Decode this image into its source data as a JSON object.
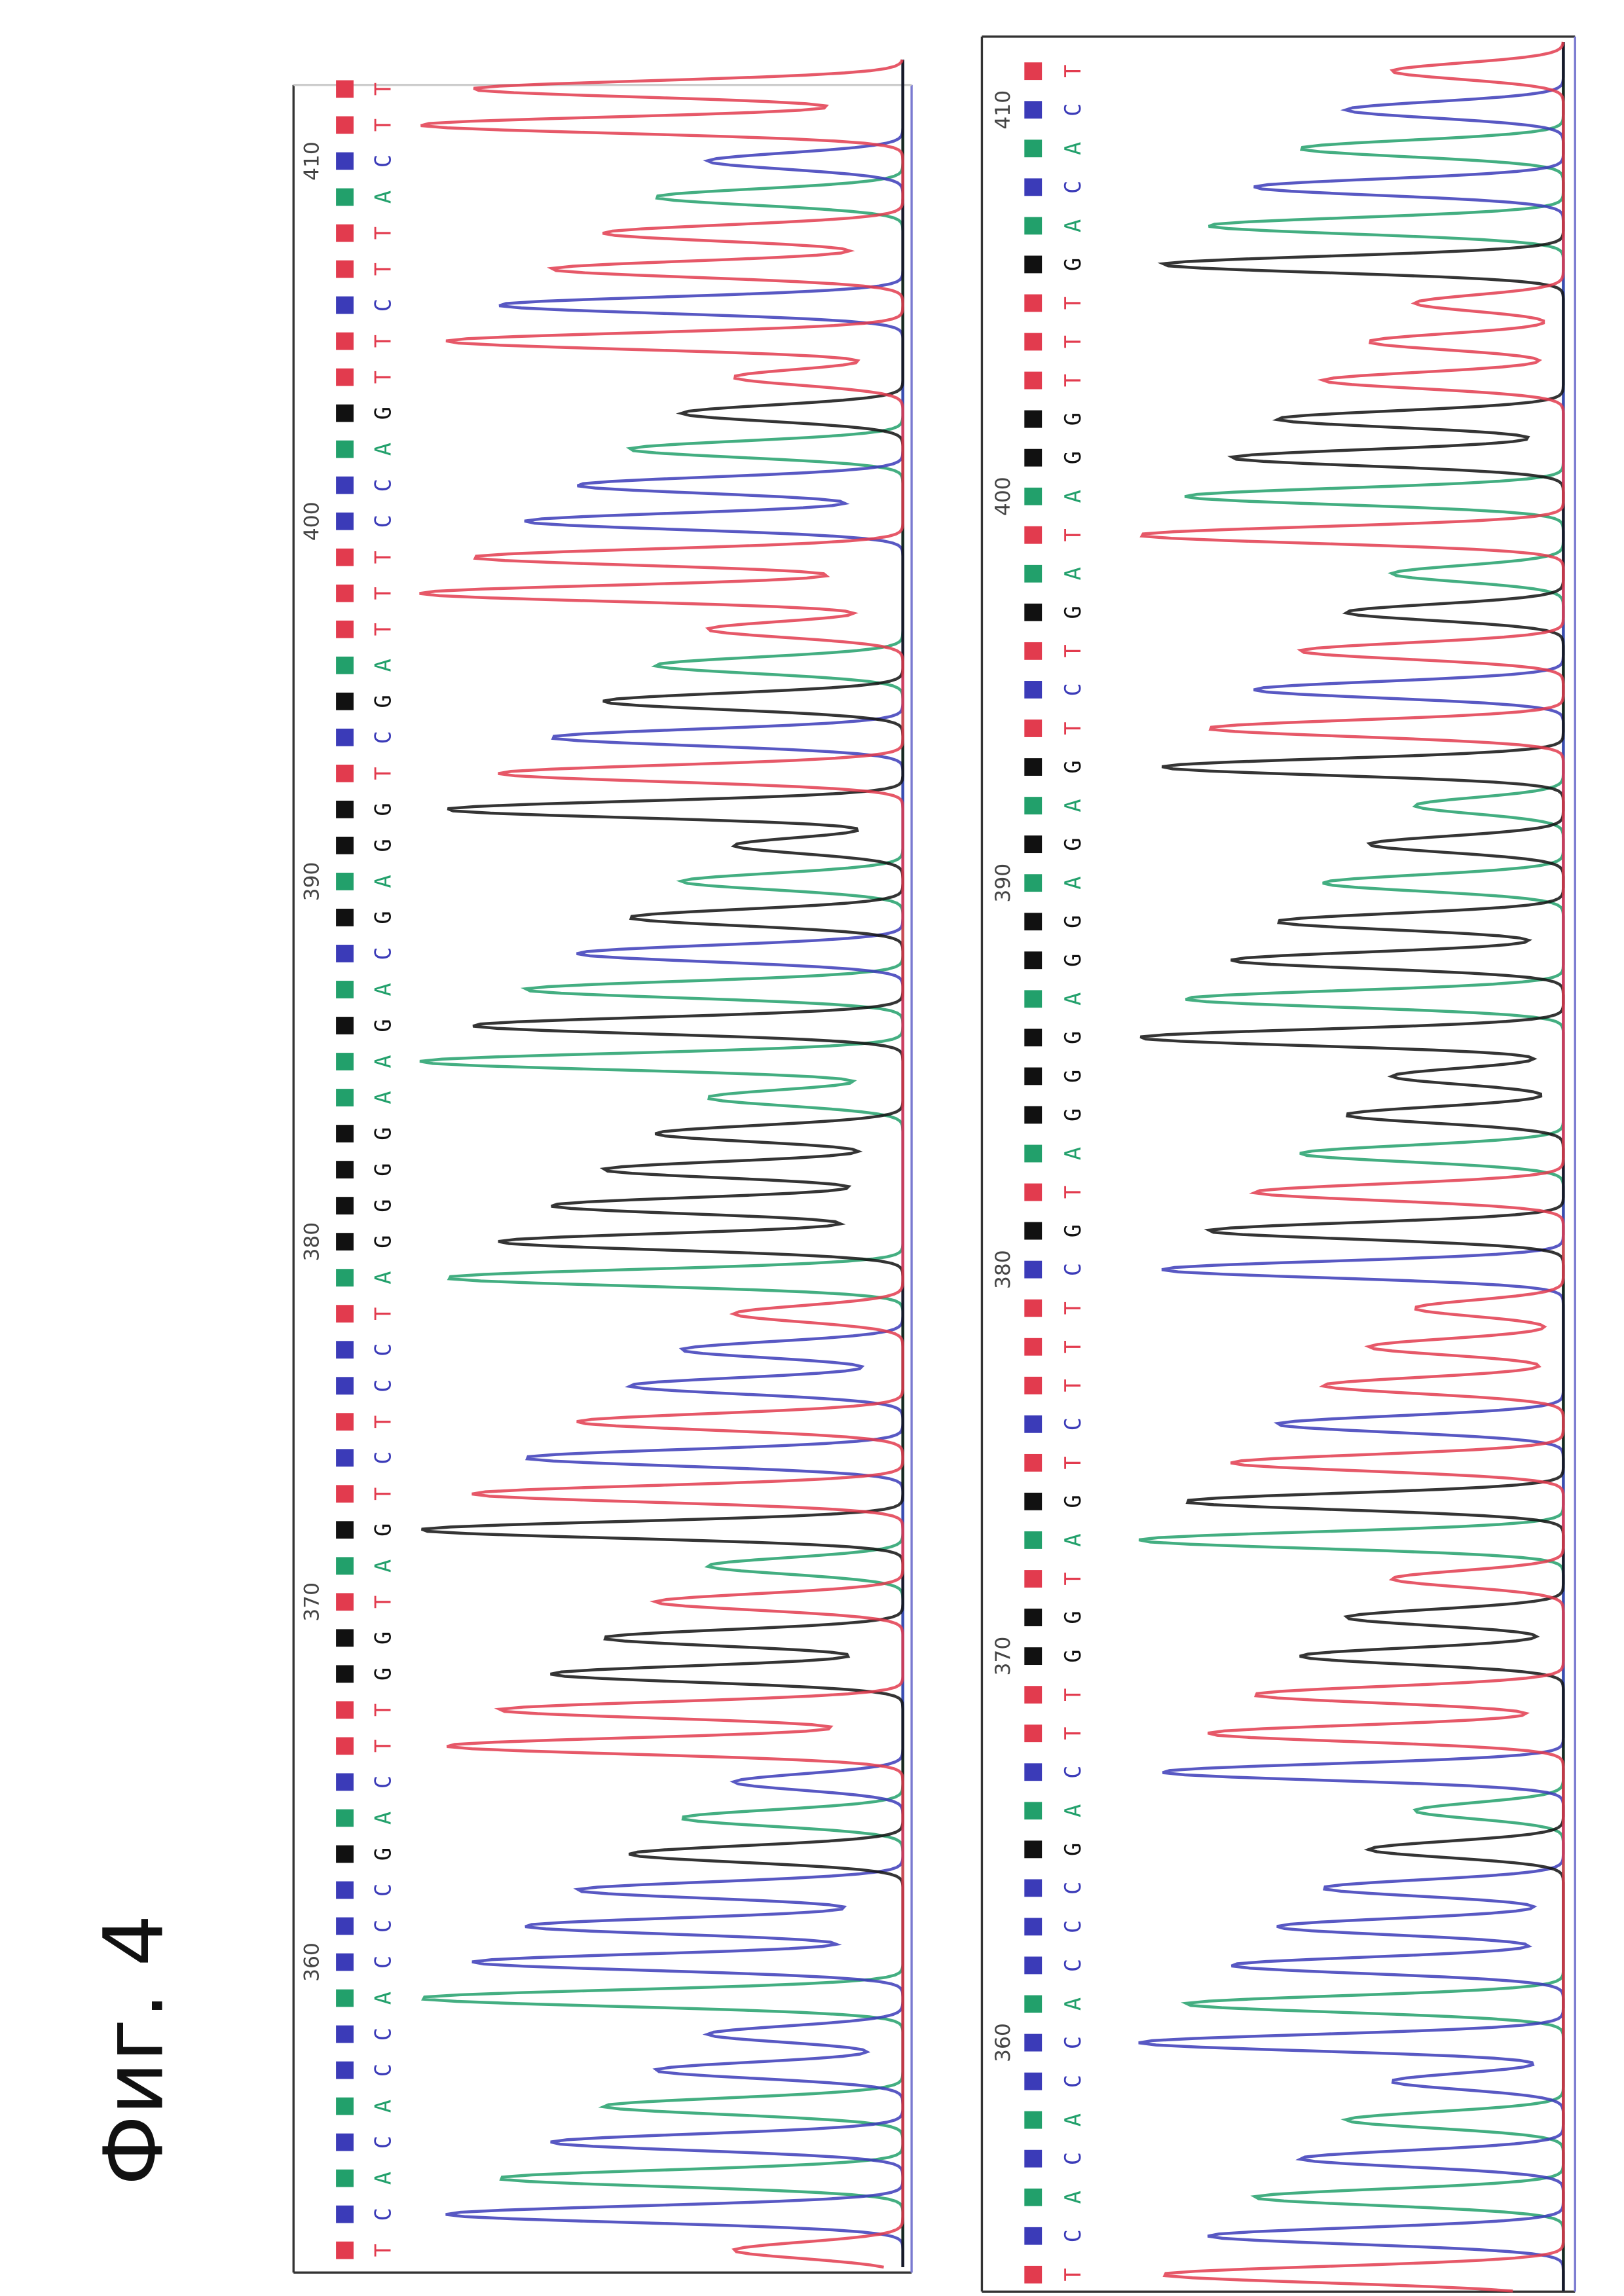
{
  "figure_label": "Фиг. 4",
  "panels": [
    {
      "positions": [
        360,
        370,
        380,
        390,
        400,
        410
      ],
      "sequence": "TCACACCACCCGACTTGGTAGTCTCCTAGGGGAAGACGAGGTCGATTTCCAGTTCTTACTT"
    },
    {
      "positions": [
        360,
        370,
        380,
        390,
        400,
        410
      ],
      "sequence": "TCACACCACCCGACTTGGTAGTCTTTCGTAGGGAGGAGAGTCTGATAGGTTTGACACT"
    }
  ]
}
